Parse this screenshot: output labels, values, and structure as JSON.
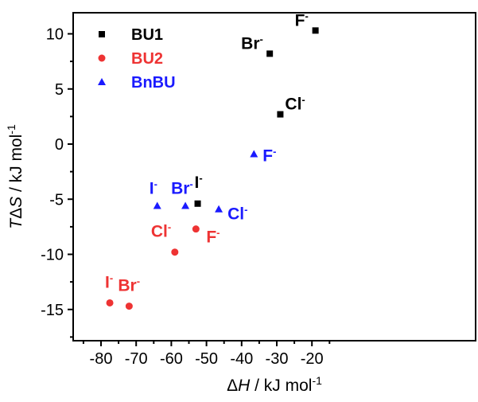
{
  "chart_data": {
    "type": "scatter",
    "xlabel": "ΔH / kJ mol⁻¹",
    "ylabel": "TΔS / kJ mol⁻¹",
    "xlim": [
      -85,
      -15
    ],
    "ylim": [
      -17.5,
      12
    ],
    "xticks": [
      -80,
      -70,
      -60,
      -50,
      -40,
      -30,
      -20
    ],
    "yticks": [
      -15,
      -10,
      -5,
      0,
      5,
      10
    ],
    "xtick_labels": [
      "-80",
      "-70",
      "-60",
      "-50",
      "-40",
      "-30",
      "-20"
    ],
    "ytick_labels": [
      "-15",
      "-10",
      "-5",
      "0",
      "5",
      "10"
    ],
    "legend_position": "top-left",
    "grid": false,
    "series": [
      {
        "name": "BU1",
        "color": "#000000",
        "marker": "square",
        "points": [
          {
            "label": "F",
            "x": -19.0,
            "y": 10.3
          },
          {
            "label": "Br",
            "x": -32.0,
            "y": 8.2
          },
          {
            "label": "Cl",
            "x": -29.0,
            "y": 2.7
          },
          {
            "label": "I",
            "x": -52.5,
            "y": -5.4
          }
        ]
      },
      {
        "name": "BU2",
        "color": "#ee3333",
        "marker": "circle",
        "points": [
          {
            "label": "I",
            "x": -77.5,
            "y": -14.4
          },
          {
            "label": "Br",
            "x": -72.0,
            "y": -14.7
          },
          {
            "label": "Cl",
            "x": -59.0,
            "y": -9.8
          },
          {
            "label": "F",
            "x": -53.0,
            "y": -7.7
          }
        ]
      },
      {
        "name": "BnBU",
        "color": "#1a1aff",
        "marker": "triangle",
        "points": [
          {
            "label": "I",
            "x": -64.0,
            "y": -5.6
          },
          {
            "label": "Br",
            "x": -56.0,
            "y": -5.6
          },
          {
            "label": "Cl",
            "x": -46.5,
            "y": -5.9
          },
          {
            "label": "F",
            "x": -36.5,
            "y": -0.9
          }
        ]
      }
    ]
  }
}
